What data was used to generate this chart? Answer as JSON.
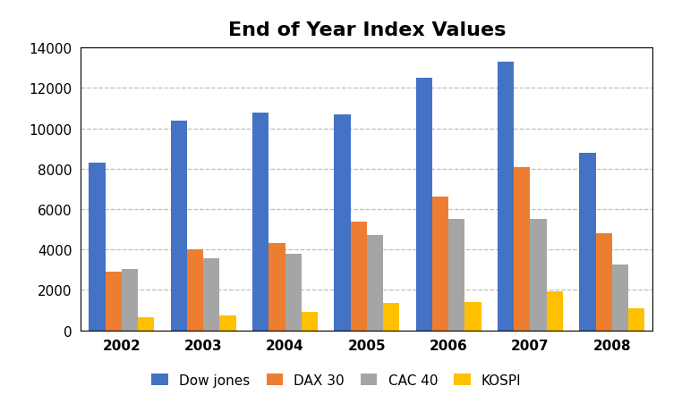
{
  "title": "End of Year Index Values",
  "years": [
    2002,
    2003,
    2004,
    2005,
    2006,
    2007,
    2008
  ],
  "series": {
    "Dow jones": [
      8300,
      10400,
      10800,
      10700,
      12500,
      13300,
      8800
    ],
    "DAX 30": [
      2900,
      4000,
      4300,
      5400,
      6600,
      8100,
      4800
    ],
    "CAC 40": [
      3050,
      3550,
      3800,
      4700,
      5500,
      5500,
      3250
    ],
    "KOSPI": [
      650,
      750,
      900,
      1350,
      1400,
      1950,
      1100
    ]
  },
  "colors": {
    "Dow jones": "#4472C4",
    "DAX 30": "#ED7D31",
    "CAC 40": "#A5A5A5",
    "KOSPI": "#FFC000"
  },
  "ylim": [
    0,
    14000
  ],
  "yticks": [
    0,
    2000,
    4000,
    6000,
    8000,
    10000,
    12000,
    14000
  ],
  "background_color": "#FFFFFF",
  "grid_color": "#BFBFBF",
  "title_fontsize": 16,
  "legend_fontsize": 11,
  "tick_fontsize": 11
}
